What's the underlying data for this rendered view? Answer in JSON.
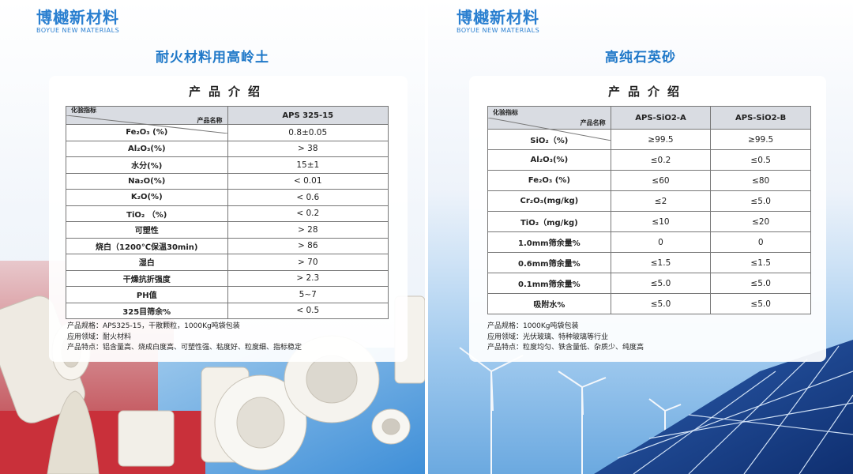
{
  "left": {
    "brand_cn": "博樾新材料",
    "brand_en": "BOYUE NEW MATERIALS",
    "title": "耐火材料用高岭土",
    "card_title": "产品介绍",
    "header": {
      "corner_top": "产品名称",
      "corner_bottom": "化验指标",
      "col1": "APS 325-15"
    },
    "rows": [
      {
        "prop": "Fe₂O₃ (%)",
        "v1": "0.8±0.05"
      },
      {
        "prop": "Al₂O₃(%)",
        "v1": "> 38"
      },
      {
        "prop": "水分(%)",
        "v1": "15±1"
      },
      {
        "prop": "Na₂O(%)",
        "v1": "< 0.01"
      },
      {
        "prop": "K₂O(%)",
        "v1": "< 0.6"
      },
      {
        "prop": "TiO₂ （%)",
        "v1": "< 0.2"
      },
      {
        "prop": "可塑性",
        "v1": "> 28"
      },
      {
        "prop": "烧白（1200℃保温30min)",
        "v1": "> 86"
      },
      {
        "prop": "湿白",
        "v1": "> 70"
      },
      {
        "prop": "干燥抗折强度",
        "v1": "> 2.3"
      },
      {
        "prop": "PH值",
        "v1": "5~7"
      },
      {
        "prop": "325目筛余%",
        "v1": "< 0.5"
      }
    ],
    "notes": [
      "产品规格：APS325-15，干散颗粒，1000Kg吨袋包装",
      "应用领域：耐火材料",
      "产品特点：铝含量高、烧成白度高、可塑性强、粘度好、粒度细、指标稳定"
    ]
  },
  "right": {
    "brand_cn": "博樾新材料",
    "brand_en": "BOYUE NEW MATERIALS",
    "title": "高纯石英砂",
    "card_title": "产品介绍",
    "header": {
      "corner_top": "产品名称",
      "corner_bottom": "化验指标",
      "col1": "APS-SiO2-A",
      "col2": "APS-SiO2-B"
    },
    "rows": [
      {
        "prop": "SiO₂（%)",
        "v1": "≥99.5",
        "v2": "≥99.5"
      },
      {
        "prop": "Al₂O₃(%)",
        "v1": "≤0.2",
        "v2": "≤0.5"
      },
      {
        "prop": "Fe₂O₃ (%)",
        "v1": "≤60",
        "v2": "≤80"
      },
      {
        "prop": "Cr₂O₃(mg/kg)",
        "v1": "≤2",
        "v2": "≤5.0"
      },
      {
        "prop": "TiO₂（mg/kg)",
        "v1": "≤10",
        "v2": "≤20"
      },
      {
        "prop": "1.0mm筛余量%",
        "v1": "0",
        "v2": "0"
      },
      {
        "prop": "0.6mm筛余量%",
        "v1": "≤1.5",
        "v2": "≤1.5"
      },
      {
        "prop": "0.1mm筛余量%",
        "v1": "≤5.0",
        "v2": "≤5.0"
      },
      {
        "prop": "吸附水%",
        "v1": "≤5.0",
        "v2": "≤5.0"
      }
    ],
    "notes": [
      "产品规格：1000Kg吨袋包装",
      "应用领域：光伏玻璃、特种玻璃等行业",
      "产品特点：粒度均匀、铁含量低、杂质少、纯度高"
    ]
  },
  "colors": {
    "brand": "#2a7fd0",
    "title": "#1f78c8",
    "header_bg": "#d9dce2"
  },
  "imagery": {
    "left": "ceramic-refractory-parts",
    "right": "solar-panels-and-wind-turbines"
  }
}
